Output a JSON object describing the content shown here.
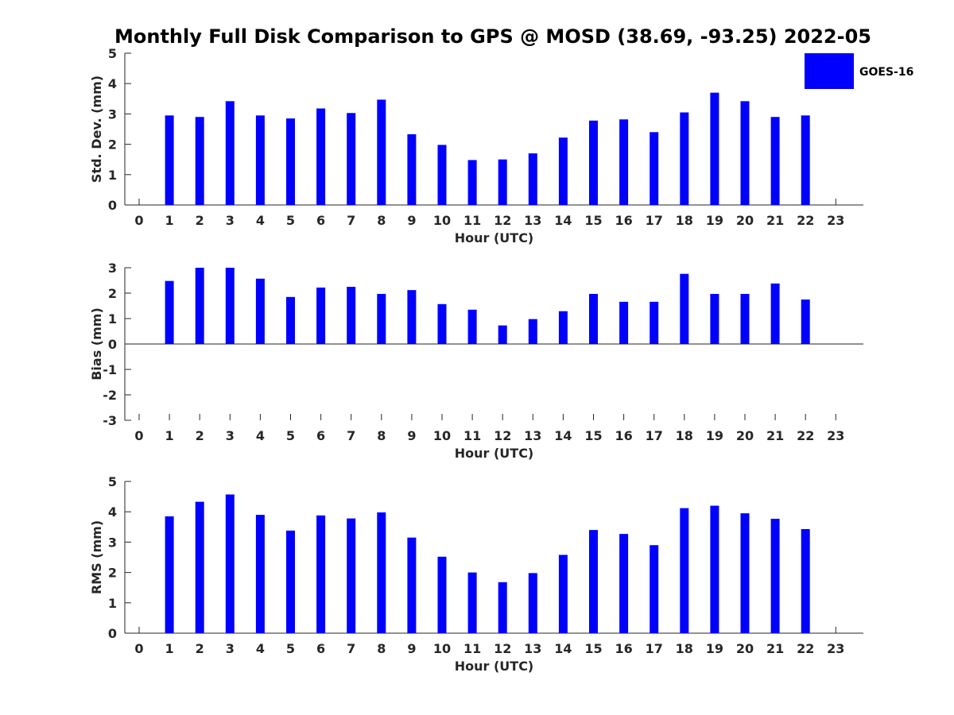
{
  "chart_data": [
    {
      "type": "bar",
      "title": "Monthly Full Disk Comparison to GPS @ MOSD (38.69, -93.25) 2022-05",
      "xlabel": "Hour (UTC)",
      "ylabel": "Std. Dev. (mm)",
      "ylim": [
        0,
        5
      ],
      "yticks": [
        0,
        1,
        2,
        3,
        4,
        5
      ],
      "categories": [
        "0",
        "1",
        "2",
        "3",
        "4",
        "5",
        "6",
        "7",
        "8",
        "9",
        "10",
        "11",
        "12",
        "13",
        "14",
        "15",
        "16",
        "17",
        "18",
        "19",
        "20",
        "21",
        "22",
        "23"
      ],
      "series": [
        {
          "name": "GOES-16",
          "color": "#0000ff",
          "values": [
            null,
            2.95,
            2.9,
            3.42,
            2.95,
            2.85,
            3.18,
            3.03,
            3.47,
            2.33,
            1.98,
            1.48,
            1.5,
            1.7,
            2.22,
            2.78,
            2.82,
            2.4,
            3.05,
            3.7,
            3.42,
            2.9,
            2.95,
            null
          ]
        }
      ]
    },
    {
      "type": "bar",
      "xlabel": "Hour (UTC)",
      "ylabel": "Bias (mm)",
      "ylim": [
        -3,
        3
      ],
      "yticks": [
        -3,
        -2,
        -1,
        0,
        1,
        2,
        3
      ],
      "categories": [
        "0",
        "1",
        "2",
        "3",
        "4",
        "5",
        "6",
        "7",
        "8",
        "9",
        "10",
        "11",
        "12",
        "13",
        "14",
        "15",
        "16",
        "17",
        "18",
        "19",
        "20",
        "21",
        "22",
        "23"
      ],
      "series": [
        {
          "name": "GOES-16",
          "color": "#0000ff",
          "values": [
            null,
            2.48,
            3.0,
            3.0,
            2.57,
            1.85,
            2.22,
            2.25,
            1.97,
            2.12,
            1.57,
            1.35,
            0.73,
            0.98,
            1.29,
            1.97,
            1.66,
            1.66,
            2.76,
            1.97,
            1.97,
            2.38,
            1.75,
            null
          ]
        }
      ]
    },
    {
      "type": "bar",
      "xlabel": "Hour (UTC)",
      "ylabel": "RMS (mm)",
      "ylim": [
        0,
        5
      ],
      "yticks": [
        0,
        1,
        2,
        3,
        4,
        5
      ],
      "categories": [
        "0",
        "1",
        "2",
        "3",
        "4",
        "5",
        "6",
        "7",
        "8",
        "9",
        "10",
        "11",
        "12",
        "13",
        "14",
        "15",
        "16",
        "17",
        "18",
        "19",
        "20",
        "21",
        "22",
        "23"
      ],
      "series": [
        {
          "name": "GOES-16",
          "color": "#0000ff",
          "values": [
            null,
            3.85,
            4.33,
            4.57,
            3.9,
            3.38,
            3.88,
            3.78,
            3.98,
            3.15,
            2.52,
            2.0,
            1.68,
            1.98,
            2.58,
            3.4,
            3.27,
            2.9,
            4.12,
            4.2,
            3.95,
            3.77,
            3.43,
            null
          ]
        }
      ]
    }
  ],
  "legend": {
    "label": "GOES-16",
    "color": "#0000ff",
    "placement": "top-right"
  }
}
